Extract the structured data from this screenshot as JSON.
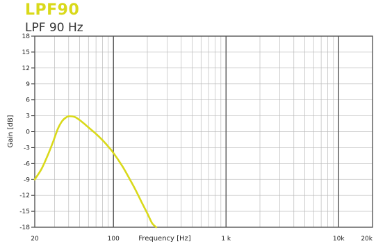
{
  "chart_data": {
    "type": "line",
    "title": "LPF90",
    "subtitle": "LPF 90 Hz",
    "xlabel": "Frequency [Hz]",
    "ylabel": "Gain [dB]",
    "x_scale": "log",
    "xlim": [
      20,
      20000
    ],
    "ylim": [
      -18,
      18
    ],
    "x_ticks": [
      {
        "value": 20,
        "label": "20"
      },
      {
        "value": 100,
        "label": "100"
      },
      {
        "value": 1000,
        "label": "1 k"
      },
      {
        "value": 10000,
        "label": "10k"
      },
      {
        "value": 20000,
        "label": "20k"
      }
    ],
    "y_ticks": [
      18,
      15,
      12,
      9,
      6,
      3,
      0,
      -3,
      -6,
      -9,
      -12,
      -15,
      -18
    ],
    "grid": true,
    "series": [
      {
        "color": "#d9d91a",
        "x": [
          20,
          23,
          26,
          29,
          32,
          35,
          38,
          40,
          45,
          50,
          55,
          60,
          70,
          80,
          90,
          100,
          120,
          140,
          160,
          180,
          200,
          220,
          240
        ],
        "y": [
          -9,
          -7,
          -4.5,
          -2,
          0.5,
          2,
          2.7,
          2.9,
          2.8,
          2.2,
          1.5,
          0.8,
          -0.4,
          -1.6,
          -2.8,
          -4,
          -6.5,
          -9,
          -11.3,
          -13.5,
          -15.4,
          -17.2,
          -18
        ]
      }
    ]
  }
}
